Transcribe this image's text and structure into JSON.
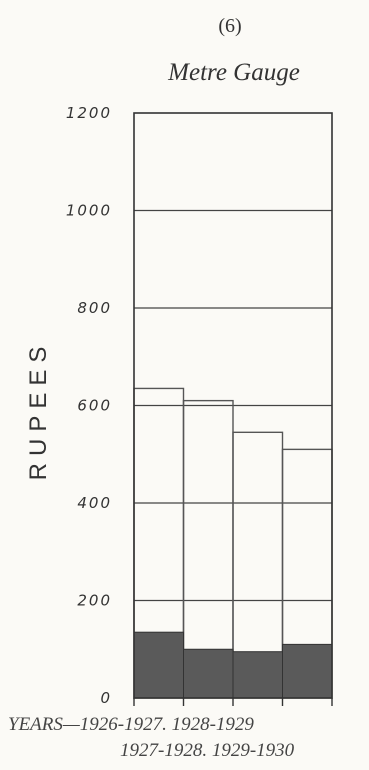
{
  "chart_data": {
    "type": "bar",
    "number": "(6)",
    "title": "Metre Gauge",
    "ylabel": "RUPEES",
    "ylim": [
      0,
      1200
    ],
    "yticks": [
      "0",
      "200",
      "400",
      "600",
      "800",
      "1000",
      "1200"
    ],
    "xlabel_prefix": "YEARS—",
    "categories": [
      "1926-1927.",
      "1927-1928.",
      "1928-1929",
      "1929-1930"
    ],
    "x_label_line1": "1926-1927.  1928-1929",
    "x_label_line2": "1927-1928. 1929-1930",
    "series": [
      {
        "values": [
          635,
          610,
          545,
          510
        ],
        "style": "outline"
      },
      {
        "values": [
          135,
          100,
          95,
          110
        ],
        "style": "filled",
        "color": "#5a5a5a"
      }
    ],
    "grid": true
  }
}
